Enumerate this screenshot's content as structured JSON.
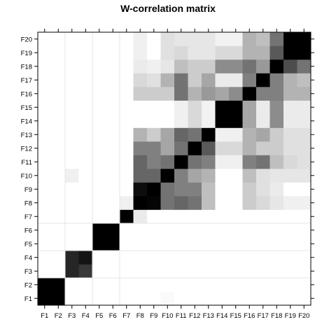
{
  "chart_data": {
    "type": "heatmap",
    "title": "W-correlation matrix",
    "labels": [
      "F1",
      "F2",
      "F3",
      "F4",
      "F5",
      "F6",
      "F7",
      "F8",
      "F9",
      "F10",
      "F11",
      "F12",
      "F13",
      "F14",
      "F15",
      "F16",
      "F17",
      "F18",
      "F19",
      "F20"
    ],
    "value_range": [
      0,
      1
    ],
    "color_scale": {
      "low": "#ffffff",
      "high": "#000000"
    },
    "grid": true,
    "values": [
      [
        1,
        1,
        0,
        0,
        0,
        0,
        0,
        0,
        0,
        0.02,
        0,
        0,
        0,
        0,
        0,
        0,
        0,
        0,
        0,
        0
      ],
      [
        1,
        1,
        0,
        0,
        0,
        0,
        0,
        0,
        0,
        0,
        0,
        0,
        0,
        0,
        0,
        0,
        0,
        0,
        0,
        0
      ],
      [
        0,
        0,
        0.85,
        0.78,
        0,
        0,
        0,
        0,
        0,
        0,
        0,
        0,
        0,
        0,
        0,
        0,
        0,
        0,
        0,
        0
      ],
      [
        0,
        0,
        0.85,
        0.92,
        0,
        0,
        0,
        0,
        0,
        0,
        0,
        0,
        0,
        0,
        0,
        0,
        0,
        0,
        0,
        0
      ],
      [
        0,
        0,
        0,
        0,
        1,
        1,
        0,
        0,
        0,
        0,
        0,
        0,
        0,
        0,
        0,
        0,
        0,
        0,
        0,
        0
      ],
      [
        0,
        0,
        0,
        0,
        1,
        1,
        0,
        0,
        0,
        0,
        0,
        0,
        0,
        0,
        0,
        0,
        0,
        0,
        0,
        0
      ],
      [
        0,
        0,
        0,
        0,
        0,
        0,
        1,
        0.08,
        0,
        0,
        0,
        0,
        0,
        0,
        0,
        0,
        0,
        0,
        0,
        0
      ],
      [
        0,
        0,
        0,
        0,
        0,
        0,
        0.06,
        1,
        0.98,
        0.55,
        0.6,
        0.55,
        0.25,
        0,
        0,
        0.2,
        0.15,
        0.1,
        0.06,
        0.06
      ],
      [
        0,
        0,
        0,
        0,
        0,
        0,
        0,
        0.95,
        1,
        0.55,
        0.5,
        0.5,
        0.25,
        0,
        0,
        0.2,
        0.12,
        0.08,
        0,
        0
      ],
      [
        0,
        0,
        0.06,
        0,
        0,
        0,
        0,
        0.6,
        0.6,
        1,
        0.5,
        0.35,
        0.3,
        0,
        0,
        0.25,
        0.12,
        0.1,
        0.1,
        0.1
      ],
      [
        0,
        0,
        0,
        0,
        0,
        0,
        0,
        0.6,
        0.5,
        0.55,
        1,
        0.55,
        0.5,
        0.06,
        0.06,
        0.5,
        0.55,
        0.25,
        0.15,
        0.12
      ],
      [
        0,
        0,
        0,
        0,
        0,
        0,
        0,
        0.5,
        0.5,
        0.35,
        0.55,
        1,
        0.65,
        0.15,
        0.15,
        0.3,
        0.2,
        0.2,
        0.12,
        0.12
      ],
      [
        0,
        0,
        0,
        0,
        0,
        0,
        0,
        0.3,
        0.2,
        0.35,
        0.6,
        0.55,
        1,
        0.06,
        0.06,
        0.3,
        0.35,
        0.2,
        0.12,
        0.12
      ],
      [
        0,
        0,
        0,
        0,
        0,
        0,
        0,
        0,
        0,
        0,
        0.06,
        0.15,
        0.05,
        1,
        1,
        0.35,
        0.08,
        0.45,
        0.08,
        0.08
      ],
      [
        0,
        0,
        0,
        0,
        0,
        0,
        0,
        0,
        0,
        0,
        0.06,
        0.15,
        0.05,
        1,
        1,
        0.35,
        0.08,
        0.45,
        0.08,
        0.08
      ],
      [
        0,
        0,
        0,
        0,
        0,
        0,
        0,
        0.2,
        0.2,
        0.2,
        0.55,
        0.3,
        0.4,
        0.35,
        0.45,
        1,
        0.5,
        0.5,
        0.3,
        0.3
      ],
      [
        0,
        0,
        0,
        0,
        0,
        0,
        0,
        0.15,
        0.12,
        0.3,
        0.55,
        0.2,
        0.35,
        0.08,
        0.08,
        0.5,
        1,
        0.5,
        0.3,
        0.25
      ],
      [
        0,
        0,
        0,
        0,
        0,
        0,
        0,
        0.08,
        0.06,
        0.1,
        0.25,
        0.2,
        0.2,
        0.45,
        0.45,
        0.55,
        0.4,
        1,
        0.7,
        0.55
      ],
      [
        0,
        0,
        0,
        0,
        0,
        0,
        0,
        0.06,
        0,
        0.12,
        0.15,
        0.1,
        0.1,
        0.15,
        0.15,
        0.3,
        0.3,
        0.65,
        1,
        1
      ],
      [
        0,
        0,
        0,
        0,
        0,
        0,
        0,
        0.06,
        0,
        0.12,
        0.1,
        0.1,
        0.1,
        0.05,
        0.05,
        0.3,
        0.25,
        0.55,
        1,
        1
      ]
    ]
  }
}
